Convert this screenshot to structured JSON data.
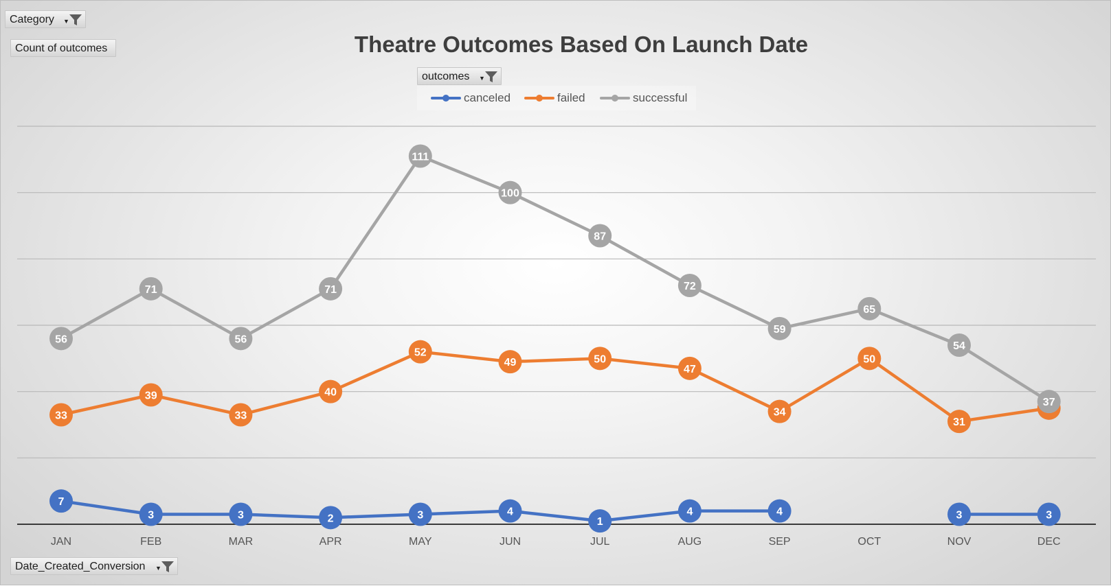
{
  "pivot_fields": {
    "category": "Category",
    "values": "Count of outcomes",
    "legend": "outcomes",
    "axis": "Date_Created_Conversion"
  },
  "colors": {
    "canceled": "#4472c4",
    "failed": "#ed7d31",
    "successful": "#a5a5a5",
    "gridline": "#b8b8b8",
    "axis_line": "#3a3a3a"
  },
  "icons": {
    "filter": "funnel-filter-icon",
    "dropdown": "chevron-down-icon"
  },
  "chart_data": {
    "type": "line",
    "title": "Theatre Outcomes Based On Launch Date",
    "xlabel": "",
    "ylabel": "",
    "categories": [
      "JAN",
      "FEB",
      "MAR",
      "APR",
      "MAY",
      "JUN",
      "JUL",
      "AUG",
      "SEP",
      "OCT",
      "NOV",
      "DEC"
    ],
    "ylim": [
      0,
      120
    ],
    "gridlines": [
      20,
      40,
      60,
      80,
      100,
      120
    ],
    "legend_position": "top",
    "data_labels": true,
    "series": [
      {
        "name": "canceled",
        "values": [
          7,
          3,
          3,
          2,
          3,
          4,
          1,
          4,
          4,
          null,
          3,
          3
        ]
      },
      {
        "name": "failed",
        "values": [
          33,
          39,
          33,
          40,
          52,
          49,
          50,
          47,
          34,
          50,
          31,
          35
        ]
      },
      {
        "name": "successful",
        "values": [
          56,
          71,
          56,
          71,
          111,
          100,
          87,
          72,
          59,
          65,
          54,
          37
        ]
      }
    ]
  }
}
